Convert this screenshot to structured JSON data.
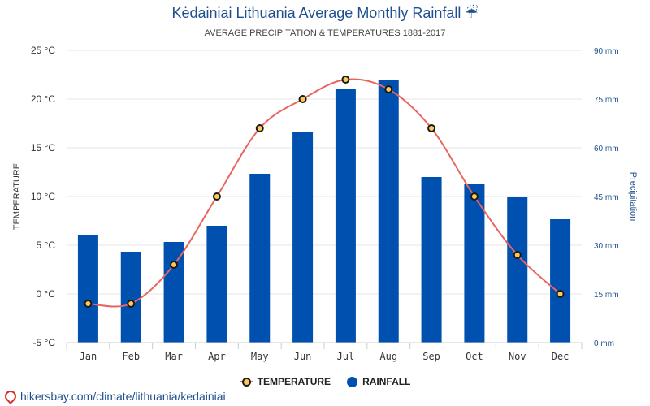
{
  "title": "Kėdainiai Lithuania Average Monthly Rainfall",
  "title_icon": "umbrella-icon",
  "subtitle": "AVERAGE PRECIPITATION & TEMPERATURES 1881-2017",
  "footer": "hikersbay.com/climate/lithuania/kedainiai",
  "footer_icon": "location-pin-icon",
  "colors": {
    "rainfall": "#0050b0",
    "temperature_line": "#e8665f",
    "temperature_marker": "#ffc857",
    "axis_text_right": "#1f4f8f",
    "gridline": "#e6e6e6"
  },
  "chart_data": {
    "type": "bar+line",
    "categories": [
      "Jan",
      "Feb",
      "Mar",
      "Apr",
      "May",
      "Jun",
      "Jul",
      "Aug",
      "Sep",
      "Oct",
      "Nov",
      "Dec"
    ],
    "series": [
      {
        "name": "RAINFALL",
        "type": "bar",
        "axis": "right",
        "values": [
          33,
          28,
          31,
          36,
          52,
          65,
          78,
          81,
          51,
          49,
          45,
          38
        ]
      },
      {
        "name": "TEMPERATURE",
        "type": "line",
        "axis": "left",
        "values": [
          -1,
          -1,
          3,
          10,
          17,
          20,
          22,
          21,
          17,
          10,
          4,
          0
        ]
      }
    ],
    "y_left": {
      "label": "TEMPERATURE",
      "ylim": [
        -5,
        25
      ],
      "ticks": [
        "-5 °C",
        "0 °C",
        "5 °C",
        "10 °C",
        "15 °C",
        "20 °C",
        "25 °C"
      ],
      "tick_values": [
        -5,
        0,
        5,
        10,
        15,
        20,
        25
      ]
    },
    "y_right": {
      "label": "Precipitation",
      "ylim": [
        0,
        90
      ],
      "ticks": [
        "0 mm",
        "15 mm",
        "30 mm",
        "45 mm",
        "60 mm",
        "75 mm",
        "90 mm"
      ],
      "tick_values": [
        0,
        15,
        30,
        45,
        60,
        75,
        90
      ]
    },
    "grid": true,
    "legend": {
      "position": "bottom-center",
      "items": [
        "TEMPERATURE",
        "RAINFALL"
      ]
    }
  }
}
